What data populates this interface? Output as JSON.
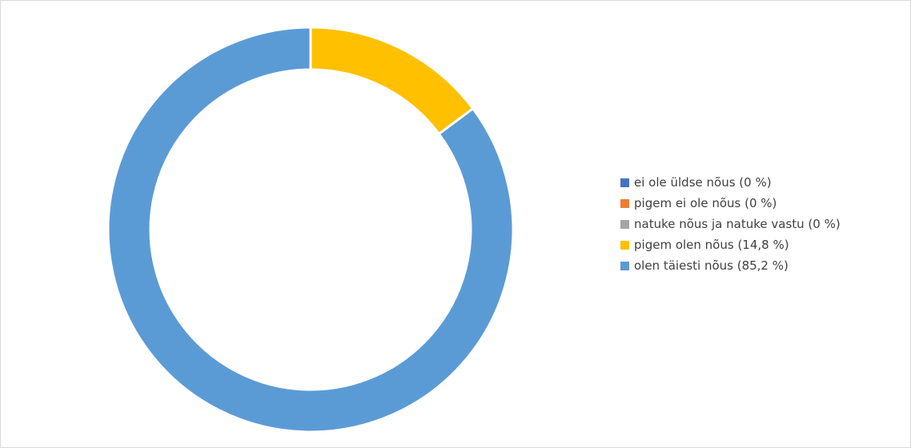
{
  "chart_data": {
    "type": "pie",
    "variant": "donut",
    "legend_position": "right",
    "series": [
      {
        "label": "ei ole üldse nõus (0 %)",
        "value": 0,
        "color": "#4472c4"
      },
      {
        "label": "pigem ei ole nõus (0 %)",
        "value": 0,
        "color": "#ed7d31"
      },
      {
        "label": "natuke nõus ja natuke vastu (0 %)",
        "value": 0,
        "color": "#a5a5a5"
      },
      {
        "label": "pigem olen nõus (14,8 %)",
        "value": 14.8,
        "color": "#ffc000"
      },
      {
        "label": "olen täiesti nõus (85,2 %)",
        "value": 85.2,
        "color": "#5b9bd5"
      }
    ]
  }
}
